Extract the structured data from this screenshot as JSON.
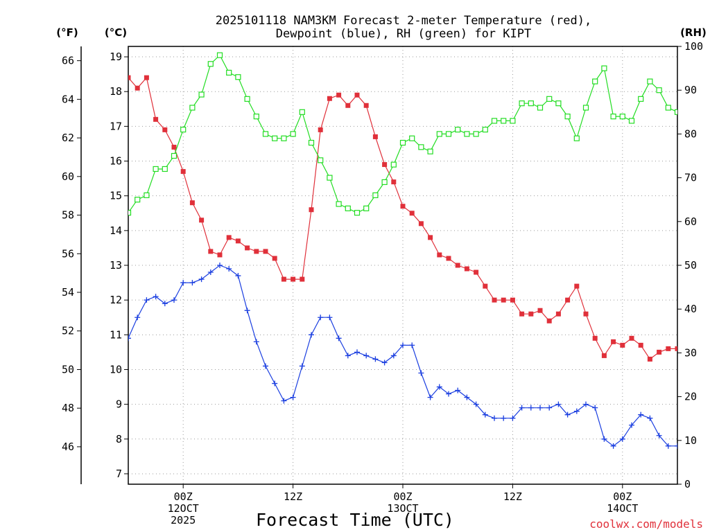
{
  "chart_data": {
    "type": "line",
    "title_line1": "2025101118 NAM3KM Forecast 2-meter Temperature (red),",
    "title_line2": "Dewpoint (blue), RH (green) for KIPT",
    "xlabel": "Forecast Time (UTC)",
    "credit": "coolwx.com/models",
    "unit_f": "(°F)",
    "unit_c": "(°C)",
    "unit_rh": "(RH)",
    "ylim_c": [
      6.7,
      19.3
    ],
    "ylim_rh": [
      0,
      100
    ],
    "y_ticks_c": [
      "7",
      "8",
      "9",
      "10",
      "11",
      "12",
      "13",
      "14",
      "15",
      "16",
      "17",
      "18",
      "19"
    ],
    "y_ticks_f": [
      "46",
      "48",
      "50",
      "52",
      "54",
      "56",
      "58",
      "60",
      "62",
      "64",
      "66"
    ],
    "y_ticks_rh": [
      "0",
      "10",
      "20",
      "30",
      "40",
      "50",
      "60",
      "70",
      "80",
      "90",
      "100"
    ],
    "x_ticks": [
      {
        "hour": 6,
        "lines": [
          "00Z",
          "12OCT",
          "2025"
        ]
      },
      {
        "hour": 18,
        "lines": [
          "12Z"
        ]
      },
      {
        "hour": 30,
        "lines": [
          "00Z",
          "13OCT"
        ]
      },
      {
        "hour": 42,
        "lines": [
          "12Z"
        ]
      },
      {
        "hour": 54,
        "lines": [
          "00Z",
          "14OCT"
        ]
      }
    ],
    "x_range_hours": [
      0,
      60
    ],
    "x_step_hours": 1,
    "series": [
      {
        "name": "Temperature",
        "units": "°C",
        "color": "#e0303a",
        "marker": "filled-square",
        "values": [
          18.4,
          18.1,
          18.4,
          17.2,
          16.9,
          16.4,
          15.7,
          14.8,
          14.3,
          13.4,
          13.3,
          13.8,
          13.7,
          13.5,
          13.4,
          13.4,
          13.2,
          12.6,
          12.6,
          12.6,
          14.6,
          16.9,
          17.8,
          17.9,
          17.6,
          17.9,
          17.6,
          16.7,
          15.9,
          15.4,
          14.7,
          14.5,
          14.2,
          13.8,
          13.3,
          13.2,
          13.0,
          12.9,
          12.8,
          12.4,
          12.0,
          12.0,
          12.0,
          11.6,
          11.6,
          11.7,
          11.4,
          11.6,
          12.0,
          12.4,
          11.6,
          10.9,
          10.4,
          10.8,
          10.7,
          10.9,
          10.7,
          10.3,
          10.5,
          10.6,
          10.6
        ]
      },
      {
        "name": "Dewpoint",
        "units": "°C",
        "color": "#1a3ee0",
        "marker": "plus",
        "values": [
          10.9,
          11.5,
          12.0,
          12.1,
          11.9,
          12.0,
          12.5,
          12.5,
          12.6,
          12.8,
          13.0,
          12.9,
          12.7,
          11.7,
          10.8,
          10.1,
          9.6,
          9.1,
          9.2,
          10.1,
          11.0,
          11.5,
          11.5,
          10.9,
          10.4,
          10.5,
          10.4,
          10.3,
          10.2,
          10.4,
          10.7,
          10.7,
          9.9,
          9.2,
          9.5,
          9.3,
          9.4,
          9.2,
          9.0,
          8.7,
          8.6,
          8.6,
          8.6,
          8.9,
          8.9,
          8.9,
          8.9,
          9.0,
          8.7,
          8.8,
          9.0,
          8.9,
          8.0,
          7.8,
          8.0,
          8.4,
          8.7,
          8.6,
          8.1,
          7.8,
          7.8
        ]
      },
      {
        "name": "RH",
        "units": "%",
        "color": "#22dd22",
        "marker": "open-square",
        "values": [
          62,
          65,
          66,
          72,
          72,
          75,
          81,
          86,
          89,
          96,
          98,
          94,
          93,
          88,
          84,
          80,
          79,
          79,
          80,
          85,
          78,
          74,
          70,
          64,
          63,
          62,
          63,
          66,
          69,
          73,
          78,
          79,
          77,
          76,
          80,
          80,
          81,
          80,
          80,
          81,
          83,
          83,
          83,
          87,
          87,
          86,
          88,
          87,
          84,
          79,
          86,
          92,
          95,
          84,
          84,
          83,
          88,
          92,
          90,
          86,
          85
        ]
      }
    ]
  }
}
